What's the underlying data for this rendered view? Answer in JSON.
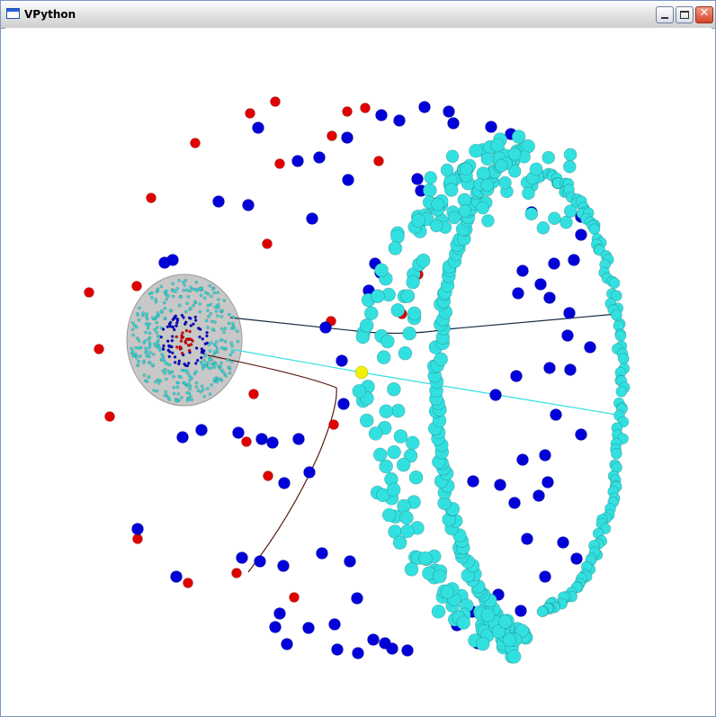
{
  "window": {
    "title": "VPython",
    "controls": {
      "minimize_icon": "minimize-icon",
      "maximize_icon": "maximize-icon",
      "close_icon": "close-icon",
      "close_glyph": "✕"
    }
  },
  "colors": {
    "red_particle": "#e00000",
    "blue_particle": "#0000d8",
    "cyan_particle": "#33e0e0",
    "yellow_particle": "#f0f000",
    "disk_gray": "#c8c8c8",
    "trail_dark": "#1a2a40",
    "trail_cyan": "#33e0e0",
    "trail_brown": "#5a1a10"
  }
}
